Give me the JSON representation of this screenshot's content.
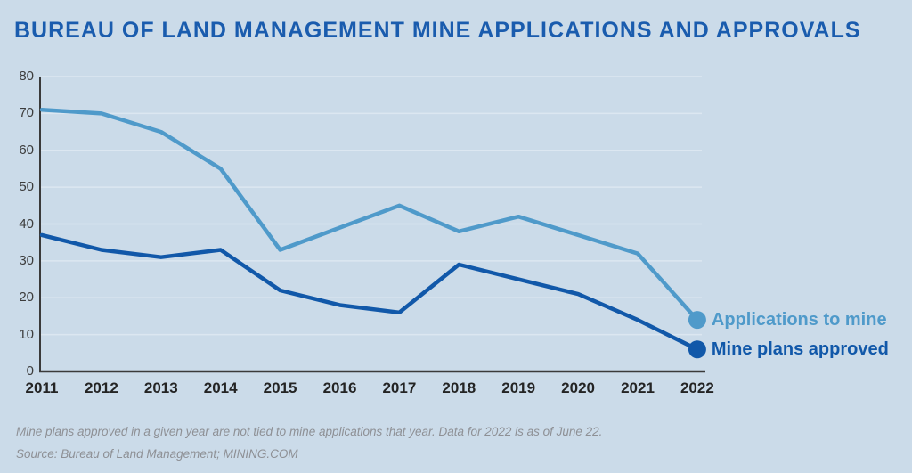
{
  "page": {
    "title": "BUREAU OF LAND MANAGEMENT MINE APPLICATIONS AND APPROVALS",
    "footnote": "Mine plans approved in a given year are not tied to mine applications that year. Data for 2022 is as of June 22.",
    "source": "Source: Bureau of Land Management; MINING.COM"
  },
  "colors": {
    "background": "#cbdbe9",
    "title": "#1a5cae",
    "gridline": "#dce7f1",
    "axis": "#3a3a3a",
    "y_tick_label": "#3c3c3c",
    "x_tick_label": "#242424",
    "footnote_text": "#8e9095",
    "applications_line": "#4f9aca",
    "approvals_line": "#1158a9"
  },
  "chart_data": {
    "type": "line",
    "title": "Bureau of Land Management mine applications and approvals",
    "categories": [
      "2011",
      "2012",
      "2013",
      "2014",
      "2015",
      "2016",
      "2017",
      "2018",
      "2019",
      "2020",
      "2021",
      "2022"
    ],
    "series": [
      {
        "name": "Applications to mine",
        "color": "#4f9aca",
        "values": [
          71,
          70,
          65,
          55,
          33,
          39,
          45,
          38,
          42,
          37,
          32,
          14
        ]
      },
      {
        "name": "Mine plans approved",
        "color": "#1158a9",
        "values": [
          37,
          33,
          31,
          33,
          22,
          18,
          16,
          29,
          25,
          21,
          14,
          6
        ]
      }
    ],
    "xlabel": "",
    "ylabel": "",
    "ylim": [
      0,
      80
    ],
    "y_ticks": [
      0,
      10,
      20,
      30,
      40,
      50,
      60,
      70,
      80
    ],
    "grid": "horizontal",
    "legend_position": "right of line ends",
    "end_markers": true
  }
}
